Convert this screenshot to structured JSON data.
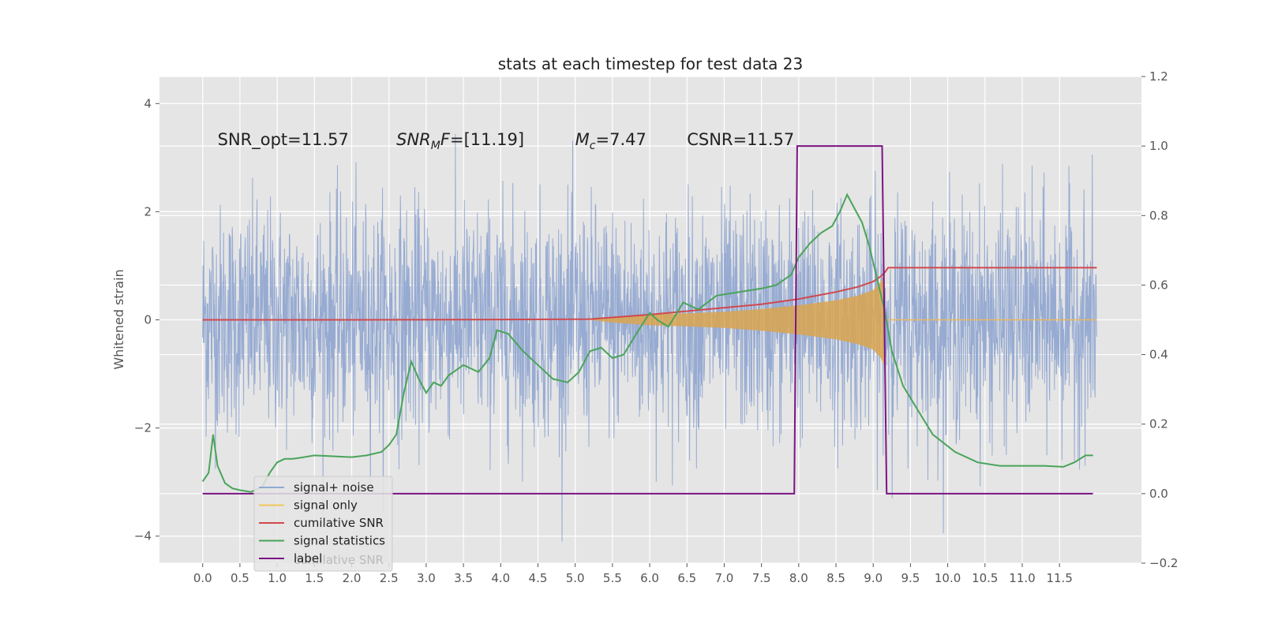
{
  "chart_data": {
    "type": "line",
    "title": "stats at each timestep for test data 23",
    "ylabel": "Whitened strain",
    "ylabel_right": "",
    "xlim": [
      -0.58,
      12.6
    ],
    "ylim": [
      -4.5,
      4.5
    ],
    "ylim_right": [
      -0.2,
      1.2
    ],
    "x_ticks": [
      "0.0",
      "0.5",
      "1.0",
      "1.5",
      "2.0",
      "2.5",
      "3.0",
      "3.5",
      "4.0",
      "4.5",
      "5.0",
      "5.5",
      "6.0",
      "6.5",
      "7.0",
      "7.5",
      "8.0",
      "8.5",
      "9.0",
      "9.5",
      "10.0",
      "10.5",
      "11.0",
      "11.5"
    ],
    "y_ticks": [
      -4,
      -2,
      0,
      2,
      4
    ],
    "y_ticks_right": [
      -0.2,
      0.0,
      0.2,
      0.4,
      0.6,
      0.8,
      1.0,
      1.2
    ],
    "grid": true,
    "legend_position": "lower-left",
    "annotations": [
      {
        "x": 0.2,
        "text_parts": [
          {
            "t": "SNR_opt=11.57",
            "i": false
          }
        ]
      },
      {
        "x": 2.6,
        "text_parts": [
          {
            "t": "SNR",
            "i": true
          },
          {
            "t": "M",
            "i": true,
            "sub": true
          },
          {
            "t": "F",
            "i": true
          },
          {
            "t": "=[11.19]",
            "i": false
          }
        ]
      },
      {
        "x": 5.0,
        "text_parts": [
          {
            "t": "M",
            "i": true
          },
          {
            "t": "c",
            "i": true,
            "sub": true
          },
          {
            "t": "=7.47",
            "i": false
          }
        ]
      },
      {
        "x": 6.5,
        "text_parts": [
          {
            "t": "CSNR=11.57",
            "i": false
          }
        ]
      }
    ],
    "legend_ghost_text": "cumilative SNR",
    "series": [
      {
        "name": "signal+ noise",
        "color": "#92a8d1",
        "axis": "left",
        "kind": "noise",
        "x_range": [
          0,
          12.0
        ],
        "amplitude_typical": 1.0,
        "amplitude_max": 4.1
      },
      {
        "name": "signal only",
        "color": "#d9a54f",
        "legend_color": "#f2c85b",
        "axis": "left",
        "kind": "chirp",
        "x": [
          5.2,
          5.5,
          6.0,
          6.5,
          7.0,
          7.5,
          8.0,
          8.5,
          8.8,
          9.0,
          9.1,
          9.15
        ],
        "envelope": [
          0.0,
          0.05,
          0.1,
          0.12,
          0.15,
          0.2,
          0.27,
          0.36,
          0.45,
          0.55,
          0.7,
          0.85
        ]
      },
      {
        "name": "cumilative SNR",
        "color": "#d0494d",
        "axis": "right",
        "x": [
          0.0,
          2.0,
          4.0,
          5.2,
          6.0,
          6.5,
          7.0,
          7.5,
          8.0,
          8.5,
          8.8,
          9.0,
          9.1,
          9.15,
          9.2,
          12.0
        ],
        "y": [
          0.5,
          0.5,
          0.501,
          0.502,
          0.515,
          0.525,
          0.535,
          0.545,
          0.56,
          0.58,
          0.595,
          0.61,
          0.625,
          0.635,
          0.65,
          0.65
        ]
      },
      {
        "name": "signal statistics",
        "color": "#49a45a",
        "axis": "right",
        "x": [
          0.0,
          0.08,
          0.14,
          0.2,
          0.3,
          0.4,
          0.5,
          0.65,
          0.8,
          0.9,
          1.0,
          1.1,
          1.2,
          1.3,
          1.5,
          1.7,
          2.0,
          2.2,
          2.4,
          2.5,
          2.6,
          2.7,
          2.8,
          2.9,
          3.0,
          3.1,
          3.2,
          3.3,
          3.5,
          3.7,
          3.85,
          3.95,
          4.1,
          4.3,
          4.5,
          4.7,
          4.9,
          5.05,
          5.2,
          5.35,
          5.5,
          5.65,
          5.85,
          6.0,
          6.1,
          6.25,
          6.45,
          6.65,
          6.9,
          7.2,
          7.5,
          7.7,
          7.9,
          8.0,
          8.15,
          8.3,
          8.45,
          8.55,
          8.65,
          8.75,
          8.85,
          8.95,
          9.05,
          9.15,
          9.25,
          9.4,
          9.6,
          9.8,
          10.1,
          10.4,
          10.7,
          11.0,
          11.3,
          11.55,
          11.7,
          11.85,
          11.95
        ],
        "y": [
          0.035,
          0.06,
          0.17,
          0.08,
          0.03,
          0.015,
          0.01,
          0.005,
          0.02,
          0.06,
          0.09,
          0.1,
          0.1,
          0.103,
          0.11,
          0.108,
          0.105,
          0.11,
          0.12,
          0.14,
          0.17,
          0.29,
          0.38,
          0.33,
          0.29,
          0.32,
          0.31,
          0.34,
          0.37,
          0.35,
          0.39,
          0.47,
          0.46,
          0.41,
          0.37,
          0.33,
          0.32,
          0.35,
          0.41,
          0.42,
          0.39,
          0.4,
          0.47,
          0.52,
          0.5,
          0.48,
          0.55,
          0.53,
          0.57,
          0.58,
          0.59,
          0.6,
          0.63,
          0.68,
          0.72,
          0.75,
          0.77,
          0.81,
          0.86,
          0.82,
          0.78,
          0.71,
          0.62,
          0.53,
          0.41,
          0.31,
          0.24,
          0.17,
          0.12,
          0.09,
          0.08,
          0.08,
          0.08,
          0.077,
          0.09,
          0.11,
          0.11
        ]
      },
      {
        "name": "label",
        "color": "#7b1483",
        "axis": "right",
        "x": [
          0.0,
          7.94,
          7.98,
          9.12,
          9.18,
          11.95
        ],
        "y": [
          0.0,
          0.0,
          1.0,
          1.0,
          0.0,
          0.0
        ]
      }
    ]
  }
}
